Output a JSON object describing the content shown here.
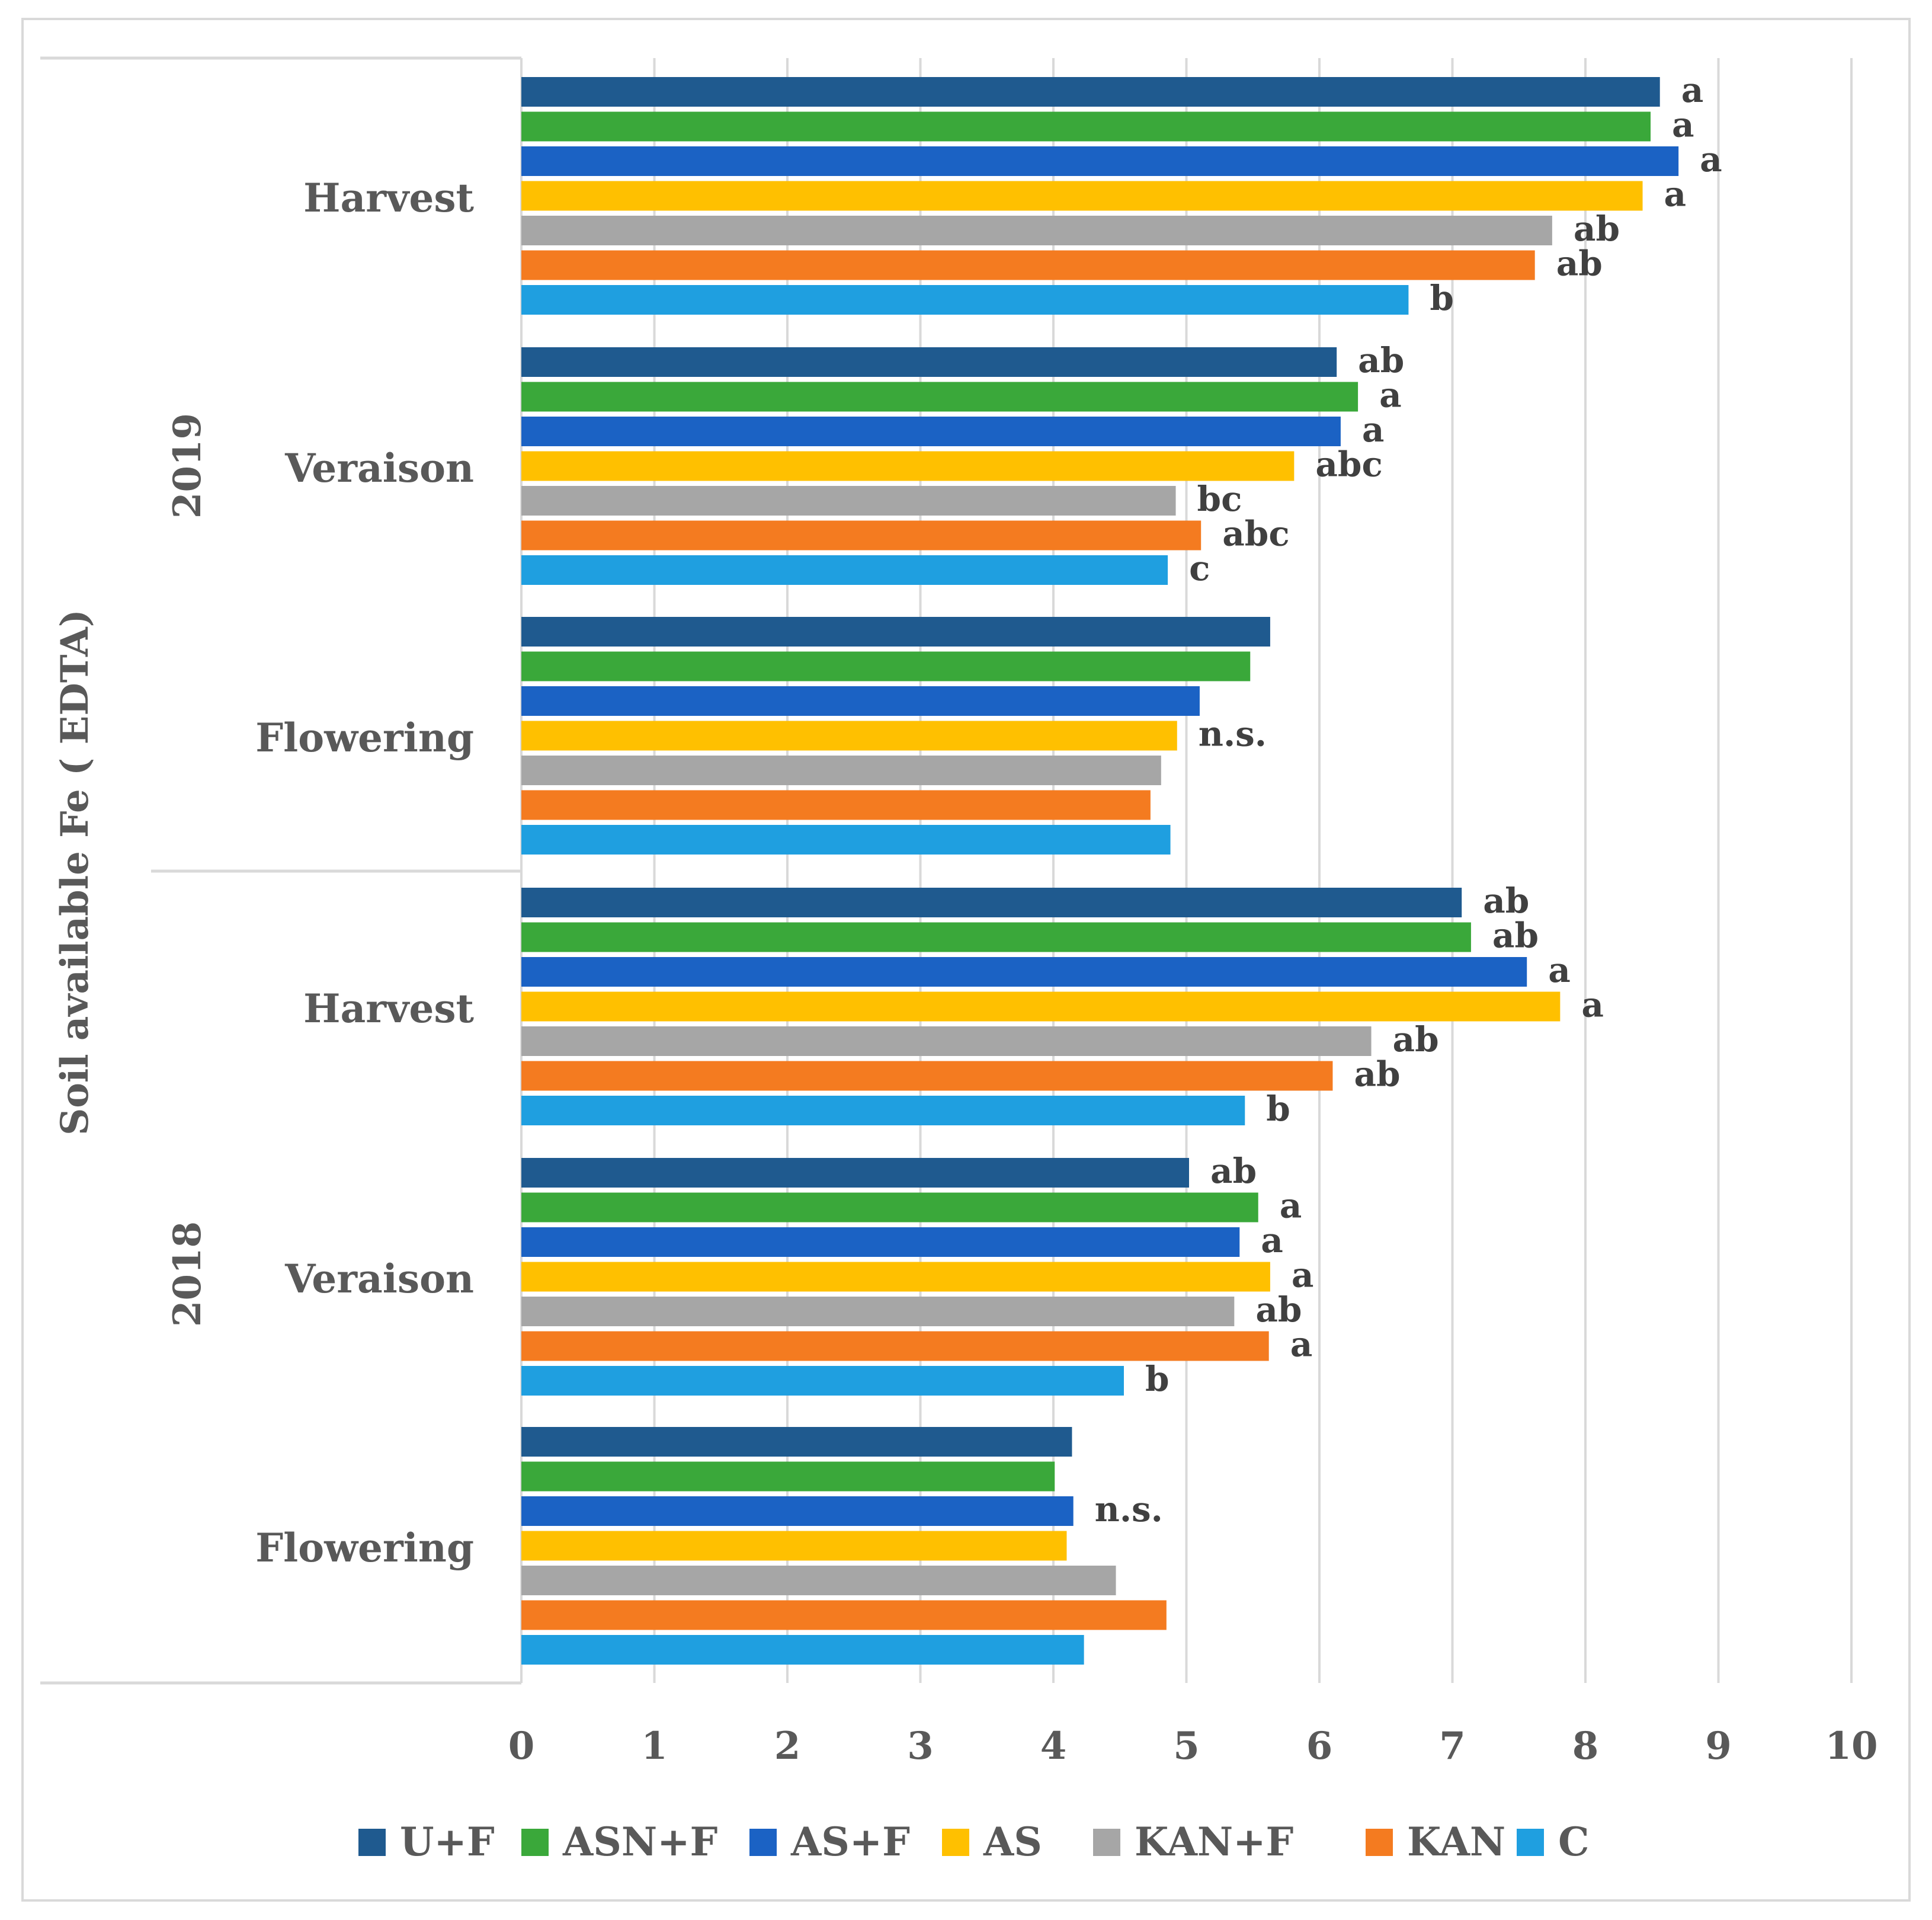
{
  "chart_data": {
    "type": "bar",
    "orientation": "horizontal",
    "title": "",
    "ylabel": "Soil available Fe ( EDTA)",
    "xlabel": "",
    "xlim": [
      0,
      10
    ],
    "xticks": [
      0,
      1,
      2,
      3,
      4,
      5,
      6,
      7,
      8,
      9,
      10
    ],
    "grid": true,
    "legend_position": "bottom",
    "series": [
      {
        "name": "U+F",
        "color": "#1f5a8f"
      },
      {
        "name": "ASN+F",
        "color": "#3aa83a"
      },
      {
        "name": "AS+F",
        "color": "#1b62c4"
      },
      {
        "name": "AS",
        "color": "#ffc000"
      },
      {
        "name": "KAN+F",
        "color": "#a6a6a6"
      },
      {
        "name": "KAN",
        "color": "#f47b20"
      },
      {
        "name": "C",
        "color": "#1f9fe0"
      }
    ],
    "groups": [
      {
        "year": "2019",
        "stage": "Harvest",
        "values": [
          8.56,
          8.49,
          8.7,
          8.43,
          7.75,
          7.62,
          6.67
        ],
        "letters": [
          "a",
          "a",
          "a",
          "a",
          "ab",
          "ab",
          "b"
        ]
      },
      {
        "year": "2019",
        "stage": "Veraison",
        "values": [
          6.13,
          6.29,
          6.16,
          5.81,
          4.92,
          5.11,
          4.86
        ],
        "letters": [
          "ab",
          "a",
          "a",
          "abc",
          "bc",
          "abc",
          "c"
        ]
      },
      {
        "year": "2019",
        "stage": "Flowering",
        "values": [
          5.63,
          5.48,
          5.1,
          4.93,
          4.81,
          4.73,
          4.88
        ],
        "letters": [
          "",
          "",
          "",
          "n.s.",
          "",
          "",
          ""
        ]
      },
      {
        "year": "2018",
        "stage": "Harvest",
        "values": [
          7.07,
          7.14,
          7.56,
          7.81,
          6.39,
          6.1,
          5.44
        ],
        "letters": [
          "ab",
          "ab",
          "a",
          "a",
          "ab",
          "ab",
          "b"
        ]
      },
      {
        "year": "2018",
        "stage": "Veraison",
        "values": [
          5.02,
          5.54,
          5.4,
          5.63,
          5.36,
          5.62,
          4.53
        ],
        "letters": [
          "ab",
          "a",
          "a",
          "a",
          "ab",
          "a",
          "b"
        ]
      },
      {
        "year": "2018",
        "stage": "Flowering",
        "values": [
          4.14,
          4.01,
          4.15,
          4.1,
          4.47,
          4.85,
          4.23
        ],
        "letters": [
          "",
          "",
          "n.s.",
          "",
          "",
          "",
          ""
        ]
      }
    ],
    "years": [
      "2019",
      "2018"
    ]
  }
}
